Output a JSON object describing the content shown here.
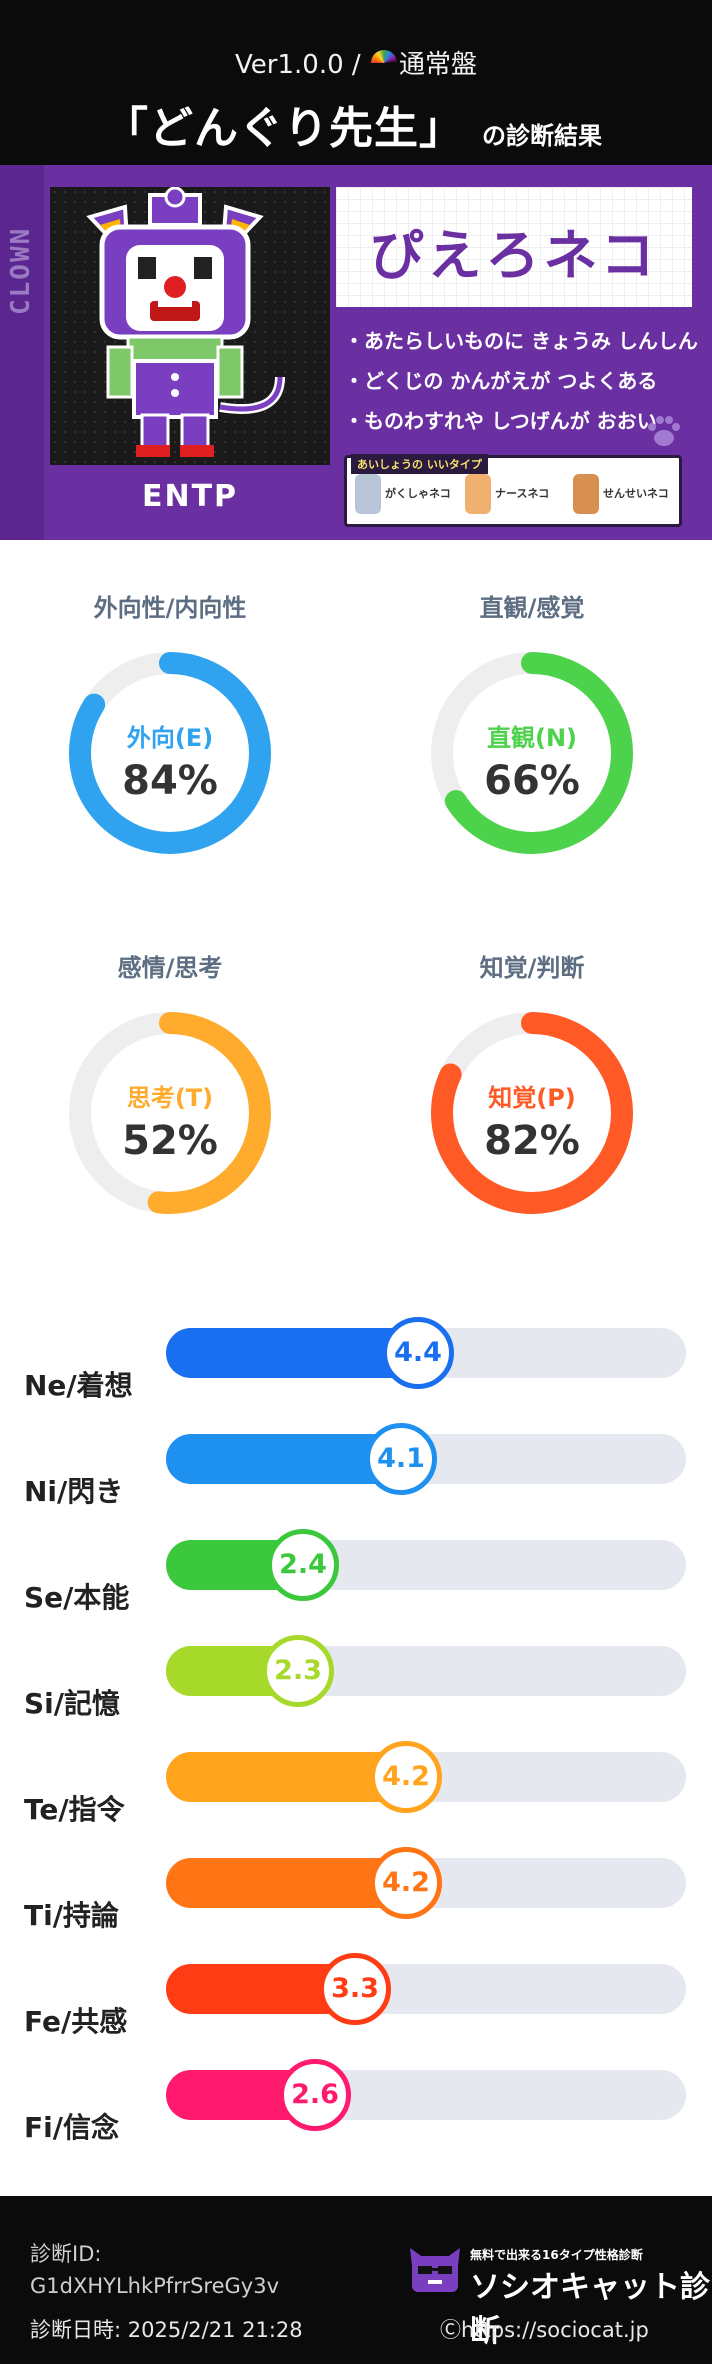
{
  "header": {
    "version_prefix": "Ver1.0.0 / ",
    "version_edition": "通常盤",
    "title": "「どんぐり先生」",
    "title_suffix": "の診断結果"
  },
  "character": {
    "side_label": "CLOWN",
    "type_code": "ENTP",
    "name": "ぴえろネコ",
    "traits": [
      "・あたらしいものに きょうみ しんしん",
      "・どくじの かんがえが つよくある",
      "・ものわすれや しつげんが おおい"
    ],
    "good_label": "あいしょうの いいタイプ",
    "good_types": [
      "がくしゃネコ",
      "ナースネコ",
      "せんせいネコ"
    ],
    "colors": {
      "banner": "#6a2fa0",
      "name": "#6a2fa0"
    }
  },
  "indicators": [
    {
      "title": "外向性/内向性",
      "label": "外向(E)",
      "value": "84%",
      "percent": 84,
      "color": "#2fa3ef"
    },
    {
      "title": "直観/感覚",
      "label": "直観(N)",
      "value": "66%",
      "percent": 66,
      "color": "#4cd34b"
    },
    {
      "title": "感情/思考",
      "label": "思考(T)",
      "value": "52%",
      "percent": 52,
      "color": "#ffac2e"
    },
    {
      "title": "知覚/判断",
      "label": "知覚(P)",
      "value": "82%",
      "percent": 82,
      "color": "#ff5a26"
    }
  ],
  "functions": [
    {
      "label": "Ne/着想",
      "value": "4.4",
      "score": 4.4,
      "color": "#1a6ff0"
    },
    {
      "label": "Ni/閃き",
      "value": "4.1",
      "score": 4.1,
      "color": "#1e90f0"
    },
    {
      "label": "Se/本能",
      "value": "2.4",
      "score": 2.4,
      "color": "#3cc83c"
    },
    {
      "label": "Si/記憶",
      "value": "2.3",
      "score": 2.3,
      "color": "#a6d92a"
    },
    {
      "label": "Te/指令",
      "value": "4.2",
      "score": 4.2,
      "color": "#ffa41c"
    },
    {
      "label": "Ti/持論",
      "value": "4.2",
      "score": 4.2,
      "color": "#ff7414"
    },
    {
      "label": "Fe/共感",
      "value": "3.3",
      "score": 3.3,
      "color": "#ff3c14"
    },
    {
      "label": "Fi/信念",
      "value": "2.6",
      "score": 2.6,
      "color": "#ff1a6e"
    }
  ],
  "functions_max": 5,
  "footer": {
    "id_label": "診断ID:",
    "id_value": "G1dXHYLhkPfrrSreGy3v",
    "date_label": "診断日時: 2025/2/21 21:28",
    "brand_sub": "無料で出来る16タイプ性格診断",
    "brand_name": "ソシオキャット診断",
    "site": "Ⓒhttps://sociocat.jp"
  }
}
